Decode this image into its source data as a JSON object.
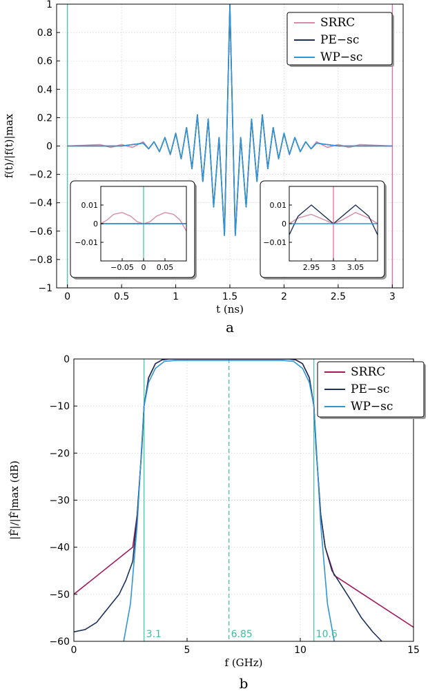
{
  "chart_data": [
    {
      "type": "line",
      "panel_label": "a",
      "xlabel": "t (ns)",
      "ylabel": "f(t)/|f(t)|max",
      "xlim": [
        -0.1,
        3.1
      ],
      "ylim": [
        -1,
        1
      ],
      "xticks": [
        0,
        0.5,
        1,
        1.5,
        2,
        2.5,
        3
      ],
      "yticks": [
        -1,
        -0.8,
        -0.6,
        -0.4,
        -0.2,
        0,
        0.2,
        0.4,
        0.6,
        0.8,
        1
      ],
      "grid": true,
      "legend_position": "top-right",
      "vertical_markers": [
        {
          "x": 0,
          "color": "#3cc0a0"
        },
        {
          "x": 3,
          "color": "#e8608a"
        }
      ],
      "series": [
        {
          "name": "SRRC",
          "color": "#d98aa8",
          "x": [
            0.0,
            0.3,
            0.4,
            0.5,
            0.6,
            0.7,
            0.75,
            0.8,
            0.85,
            0.9,
            0.95,
            1.0,
            1.05,
            1.1,
            1.15,
            1.2,
            1.25,
            1.3,
            1.35,
            1.4,
            1.45,
            1.5,
            1.55,
            1.6,
            1.65,
            1.7,
            1.75,
            1.8,
            1.85,
            1.9,
            1.95,
            2.0,
            2.05,
            2.1,
            2.15,
            2.2,
            2.25,
            2.3,
            2.4,
            2.5,
            2.6,
            2.7,
            3.0
          ],
          "y": [
            0.0,
            0.01,
            -0.01,
            0.01,
            -0.01,
            0.03,
            -0.02,
            0.03,
            -0.04,
            0.06,
            -0.06,
            0.09,
            -0.09,
            0.13,
            -0.16,
            0.22,
            -0.25,
            0.19,
            -0.43,
            0.06,
            -0.63,
            1.0,
            -0.63,
            0.06,
            -0.43,
            0.19,
            -0.25,
            0.22,
            -0.16,
            0.13,
            -0.09,
            0.09,
            -0.06,
            0.06,
            -0.04,
            0.03,
            -0.02,
            0.03,
            -0.01,
            0.01,
            -0.01,
            0.01,
            0.0
          ]
        },
        {
          "name": "PE−sc",
          "color": "#1c2f5a",
          "x": [
            0.0,
            0.5,
            0.7,
            0.75,
            0.8,
            0.85,
            0.9,
            0.95,
            1.0,
            1.05,
            1.1,
            1.15,
            1.2,
            1.25,
            1.3,
            1.35,
            1.4,
            1.45,
            1.5,
            1.55,
            1.6,
            1.65,
            1.7,
            1.75,
            1.8,
            1.85,
            1.9,
            1.95,
            2.0,
            2.05,
            2.1,
            2.15,
            2.2,
            2.25,
            2.3,
            2.5,
            3.0
          ],
          "y": [
            0.0,
            0.0,
            0.02,
            -0.02,
            0.03,
            -0.04,
            0.06,
            -0.06,
            0.09,
            -0.09,
            0.13,
            -0.16,
            0.22,
            -0.25,
            0.19,
            -0.43,
            0.06,
            -0.63,
            1.0,
            -0.63,
            0.06,
            -0.43,
            0.19,
            -0.25,
            0.22,
            -0.16,
            0.13,
            -0.09,
            0.09,
            -0.06,
            0.06,
            -0.04,
            0.03,
            -0.02,
            0.02,
            0.0,
            0.0
          ]
        },
        {
          "name": "WP−sc",
          "color": "#2e95d6",
          "x": [
            0.0,
            0.5,
            0.7,
            0.75,
            0.8,
            0.85,
            0.9,
            0.95,
            1.0,
            1.05,
            1.1,
            1.15,
            1.2,
            1.25,
            1.3,
            1.35,
            1.4,
            1.45,
            1.5,
            1.55,
            1.6,
            1.65,
            1.7,
            1.75,
            1.8,
            1.85,
            1.9,
            1.95,
            2.0,
            2.05,
            2.1,
            2.15,
            2.2,
            2.25,
            2.3,
            2.5,
            3.0
          ],
          "y": [
            0.0,
            0.0,
            0.02,
            -0.02,
            0.03,
            -0.04,
            0.06,
            -0.06,
            0.09,
            -0.09,
            0.13,
            -0.16,
            0.22,
            -0.25,
            0.19,
            -0.43,
            0.06,
            -0.63,
            1.0,
            -0.63,
            0.06,
            -0.43,
            0.19,
            -0.25,
            0.22,
            -0.16,
            0.13,
            -0.09,
            0.09,
            -0.06,
            0.06,
            -0.04,
            0.03,
            -0.02,
            0.02,
            0.0,
            0.0
          ]
        }
      ],
      "insets": [
        {
          "position": "bottom-left",
          "xlim": [
            -0.1,
            0.1
          ],
          "ylim": [
            -0.02,
            0.02
          ],
          "xticks": [
            {
              "v": -0.05,
              "label": "−0.05"
            },
            {
              "v": 0,
              "label": "0"
            },
            {
              "v": 0.05,
              "label": "0.05"
            }
          ],
          "yticks": [
            {
              "v": 0.01,
              "label": "0.01"
            },
            {
              "v": 0,
              "label": "0"
            },
            {
              "v": -0.01,
              "label": "−0.01"
            }
          ],
          "marker_x": 0,
          "marker_color": "#3cc0a0",
          "series": [
            {
              "name": "SRRC",
              "color": "#d98aa8",
              "x": [
                -0.1,
                -0.085,
                -0.07,
                -0.05,
                -0.03,
                -0.015,
                0.0,
                0.015,
                0.03,
                0.05,
                0.07,
                0.085,
                0.1
              ],
              "y": [
                0.0,
                0.002,
                0.005,
                0.006,
                0.004,
                0.001,
                0.0,
                0.001,
                0.004,
                0.006,
                0.005,
                0.002,
                -0.004
              ]
            },
            {
              "name": "PE−sc",
              "color": "#1c2f5a",
              "x": [
                -0.1,
                0.1
              ],
              "y": [
                0,
                0
              ]
            },
            {
              "name": "WP−sc",
              "color": "#2e95d6",
              "x": [
                -0.1,
                0.1
              ],
              "y": [
                0,
                0
              ]
            }
          ]
        },
        {
          "position": "bottom-right",
          "xlim": [
            2.9,
            3.1
          ],
          "ylim": [
            -0.02,
            0.02
          ],
          "xticks": [
            {
              "v": 2.95,
              "label": "2.95"
            },
            {
              "v": 3,
              "label": "3"
            },
            {
              "v": 3.05,
              "label": "3.05"
            }
          ],
          "yticks": [
            {
              "v": 0.01,
              "label": "0.01"
            },
            {
              "v": 0,
              "label": "0"
            },
            {
              "v": -0.01,
              "label": "−0.01"
            }
          ],
          "marker_x": 3,
          "marker_color": "#e8608a",
          "series": [
            {
              "name": "SRRC",
              "color": "#d98aa8",
              "x": [
                2.9,
                2.92,
                2.95,
                2.98,
                3.0,
                3.02,
                3.05,
                3.08,
                3.1
              ],
              "y": [
                0.0,
                0.003,
                0.005,
                0.002,
                0.0,
                0.002,
                0.006,
                0.003,
                0.0
              ]
            },
            {
              "name": "PE−sc",
              "color": "#1c2f5a",
              "x": [
                2.9,
                2.92,
                2.95,
                2.98,
                3.0,
                3.02,
                3.05,
                3.08,
                3.1
              ],
              "y": [
                -0.006,
                0.004,
                0.01,
                0.004,
                0.0,
                0.004,
                0.01,
                0.004,
                -0.006
              ]
            },
            {
              "name": "WP−sc",
              "color": "#2e95d6",
              "x": [
                2.9,
                3.1
              ],
              "y": [
                0,
                0
              ]
            }
          ]
        }
      ]
    },
    {
      "type": "line",
      "panel_label": "b",
      "xlabel": "f (GHz)",
      "ylabel": "|F̂|/|F̂|max (dB)",
      "xlim": [
        0,
        15
      ],
      "ylim": [
        -60,
        0
      ],
      "xticks": [
        0,
        5,
        10,
        15
      ],
      "yticks": [
        0,
        -10,
        -20,
        -30,
        -40,
        -50,
        -60
      ],
      "grid": true,
      "legend_position": "top-right",
      "vertical_markers": [
        {
          "x": 3.1,
          "label": "3.1",
          "color": "#3cc0a0",
          "style": "solid"
        },
        {
          "x": 6.85,
          "label": "6.85",
          "color": "#3cc0a0",
          "style": "dashed"
        },
        {
          "x": 10.6,
          "label": "10.6",
          "color": "#3cc0a0",
          "style": "solid"
        }
      ],
      "series": [
        {
          "name": "SRRC",
          "color": "#9e1c5e",
          "x": [
            0.0,
            2.6,
            2.8,
            3.0,
            3.1,
            3.3,
            3.6,
            3.9,
            4.2,
            9.5,
            9.8,
            10.1,
            10.4,
            10.6,
            10.7,
            10.9,
            11.1,
            11.5,
            15.0
          ],
          "y": [
            -50,
            -40,
            -33,
            -19,
            -10,
            -4,
            -1,
            -0.2,
            0,
            0,
            -0.2,
            -1,
            -4,
            -10,
            -19,
            -33,
            -40,
            -46,
            -57
          ]
        },
        {
          "name": "PE−sc",
          "color": "#1c2f5a",
          "x": [
            0.0,
            0.5,
            1.0,
            1.5,
            2.0,
            2.3,
            2.6,
            2.8,
            3.0,
            3.1,
            3.3,
            3.6,
            3.9,
            4.2,
            9.5,
            9.8,
            10.1,
            10.4,
            10.6,
            10.7,
            10.9,
            11.1,
            11.4,
            11.8,
            12.2,
            12.7,
            13.2,
            13.6
          ],
          "y": [
            -58,
            -57.5,
            -56,
            -53,
            -50,
            -47,
            -43,
            -33,
            -19,
            -10,
            -4,
            -1,
            -0.2,
            0,
            0,
            -0.2,
            -1,
            -4,
            -10,
            -19,
            -33,
            -40,
            -45,
            -48,
            -51,
            -55,
            -58,
            -60
          ]
        },
        {
          "name": "WP−sc",
          "color": "#2e95d6",
          "x": [
            2.2,
            2.5,
            2.8,
            3.0,
            3.1,
            3.3,
            3.6,
            4.0,
            4.5,
            9.2,
            9.7,
            10.1,
            10.4,
            10.6,
            10.7,
            10.9,
            11.2,
            11.5
          ],
          "y": [
            -60,
            -52,
            -35,
            -18,
            -10,
            -5,
            -2,
            -0.5,
            -0.3,
            -0.3,
            -0.5,
            -2,
            -5,
            -10,
            -18,
            -35,
            -52,
            -60
          ]
        }
      ]
    }
  ]
}
